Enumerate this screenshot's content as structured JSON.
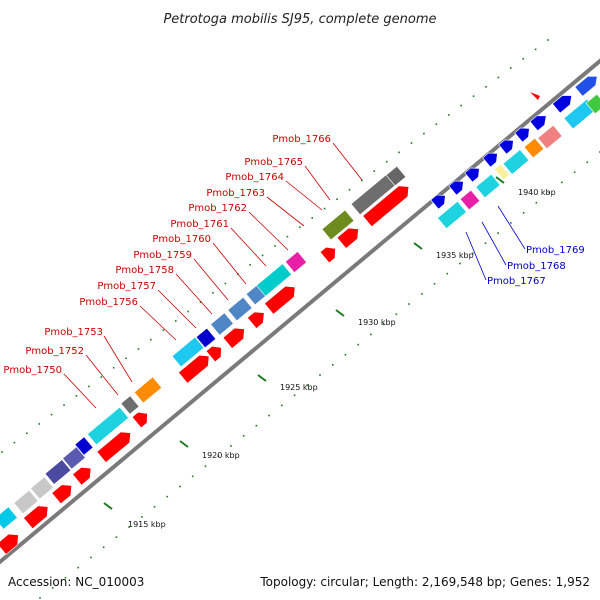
{
  "title": "Petrotoga mobilis SJ95, complete genome",
  "footer": {
    "accession": "Accession: NC_010003",
    "summary": "Topology: circular; Length: 2,169,548 bp; Genes: 1,952"
  },
  "colors": {
    "background": "#ffffff",
    "backbone": "#7a7a7a",
    "forward_gene": "#ff0000",
    "tick": "#1e7a1e",
    "label_red": "#cc0000",
    "label_blue": "#0000cc"
  },
  "scale": {
    "ticks": [
      {
        "label": "1915 kbp"
      },
      {
        "label": "1920 kbp"
      },
      {
        "label": "1925 kbp"
      },
      {
        "label": "1930 kbp"
      },
      {
        "label": "1935 kbp"
      },
      {
        "label": "1940 kbp"
      }
    ]
  },
  "gene_labels": [
    {
      "text": "Pmob_1750",
      "color": "red"
    },
    {
      "text": "Pmob_1752",
      "color": "red"
    },
    {
      "text": "Pmob_1753",
      "color": "red"
    },
    {
      "text": "Pmob_1756",
      "color": "red"
    },
    {
      "text": "Pmob_1757",
      "color": "red"
    },
    {
      "text": "Pmob_1758",
      "color": "red"
    },
    {
      "text": "Pmob_1759",
      "color": "red"
    },
    {
      "text": "Pmob_1760",
      "color": "red"
    },
    {
      "text": "Pmob_1761",
      "color": "red"
    },
    {
      "text": "Pmob_1762",
      "color": "red"
    },
    {
      "text": "Pmob_1763",
      "color": "red"
    },
    {
      "text": "Pmob_1764",
      "color": "red"
    },
    {
      "text": "Pmob_1765",
      "color": "red"
    },
    {
      "text": "Pmob_1766",
      "color": "red"
    },
    {
      "text": "Pmob_1767",
      "color": "blue"
    },
    {
      "text": "Pmob_1768",
      "color": "blue"
    },
    {
      "text": "Pmob_1769",
      "color": "blue"
    }
  ]
}
